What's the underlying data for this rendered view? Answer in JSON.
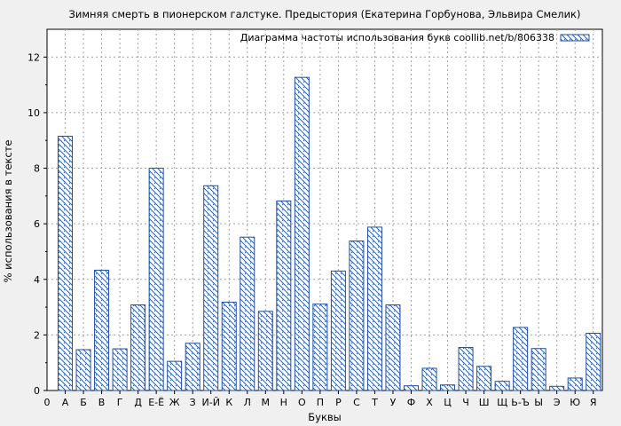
{
  "chart_data": {
    "type": "bar",
    "title": "Зимняя смерть в пионерском галстуке. Предыстория (Екатерина Горбунова, Эльвира Смелик)",
    "xlabel": "Буквы",
    "ylabel": "% использования в тексте",
    "legend": {
      "label": "Диаграмма частоты использования букв coollib.net/b/806338",
      "position": "top-right"
    },
    "ylim": [
      0,
      13
    ],
    "yticks": [
      0,
      2,
      4,
      6,
      8,
      10,
      12
    ],
    "grid": true,
    "x_axis_start_label": "0",
    "categories": [
      "А",
      "Б",
      "В",
      "Г",
      "Д",
      "Е-Ё",
      "Ж",
      "З",
      "И-Й",
      "К",
      "Л",
      "М",
      "Н",
      "О",
      "П",
      "Р",
      "С",
      "Т",
      "У",
      "Ф",
      "Х",
      "Ц",
      "Ч",
      "Ш",
      "Щ",
      "Ь-Ъ",
      "Ы",
      "Э",
      "Ю",
      "Я"
    ],
    "values": [
      9.15,
      1.47,
      4.33,
      1.5,
      3.08,
      8.0,
      1.05,
      1.7,
      7.37,
      3.18,
      5.52,
      2.85,
      6.82,
      11.27,
      3.11,
      4.3,
      5.38,
      5.88,
      3.08,
      0.17,
      0.8,
      0.2,
      1.55,
      0.87,
      0.33,
      2.27,
      1.51,
      0.15,
      0.45,
      2.06
    ]
  },
  "colors": {
    "bar_stroke": "#1f4fa0",
    "background": "#f0f0f0",
    "plot_background": "#ffffff",
    "grid": "#a0a0a0"
  }
}
